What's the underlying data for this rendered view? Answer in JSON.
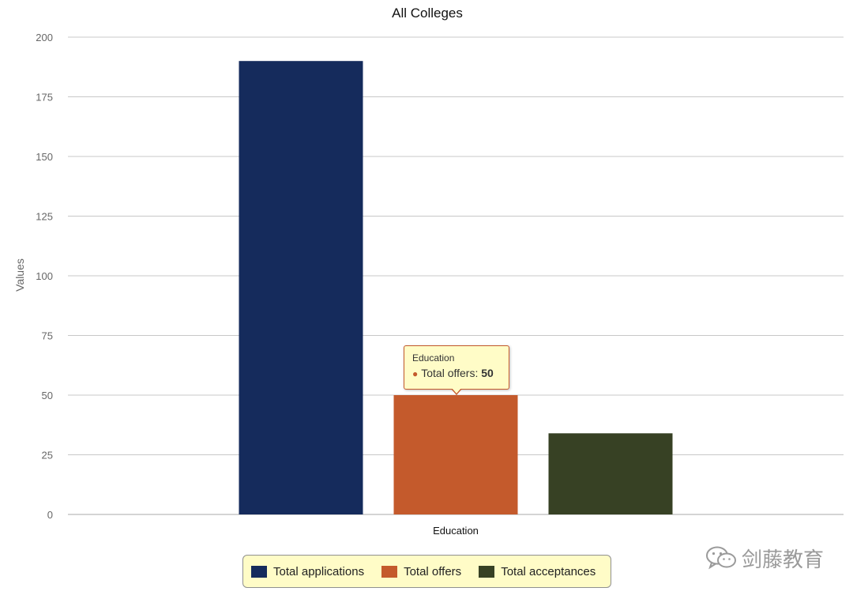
{
  "chart_data": {
    "type": "bar",
    "title": "All Colleges",
    "xlabel": "",
    "ylabel": "Values",
    "categories": [
      "Education"
    ],
    "ylim": [
      0,
      200
    ],
    "yticks": [
      0,
      25,
      50,
      75,
      100,
      125,
      150,
      175,
      200
    ],
    "grid": true,
    "legend_position": "bottom",
    "series": [
      {
        "name": "Total applications",
        "values": [
          190
        ],
        "color": "#152b5c"
      },
      {
        "name": "Total offers",
        "values": [
          50
        ],
        "color": "#c45a2c"
      },
      {
        "name": "Total acceptances",
        "values": [
          34
        ],
        "color": "#374124"
      }
    ]
  },
  "tooltip": {
    "category": "Education",
    "series_label": "Total offers:",
    "value": "50",
    "color": "#c45a2c"
  },
  "legend": {
    "background": "#fffcc7",
    "items": [
      {
        "label": "Total applications",
        "color": "#152b5c"
      },
      {
        "label": "Total offers",
        "color": "#c45a2c"
      },
      {
        "label": "Total acceptances",
        "color": "#374124"
      }
    ]
  },
  "watermark": {
    "icon": "wechat-icon",
    "text": "剑藤教育"
  }
}
